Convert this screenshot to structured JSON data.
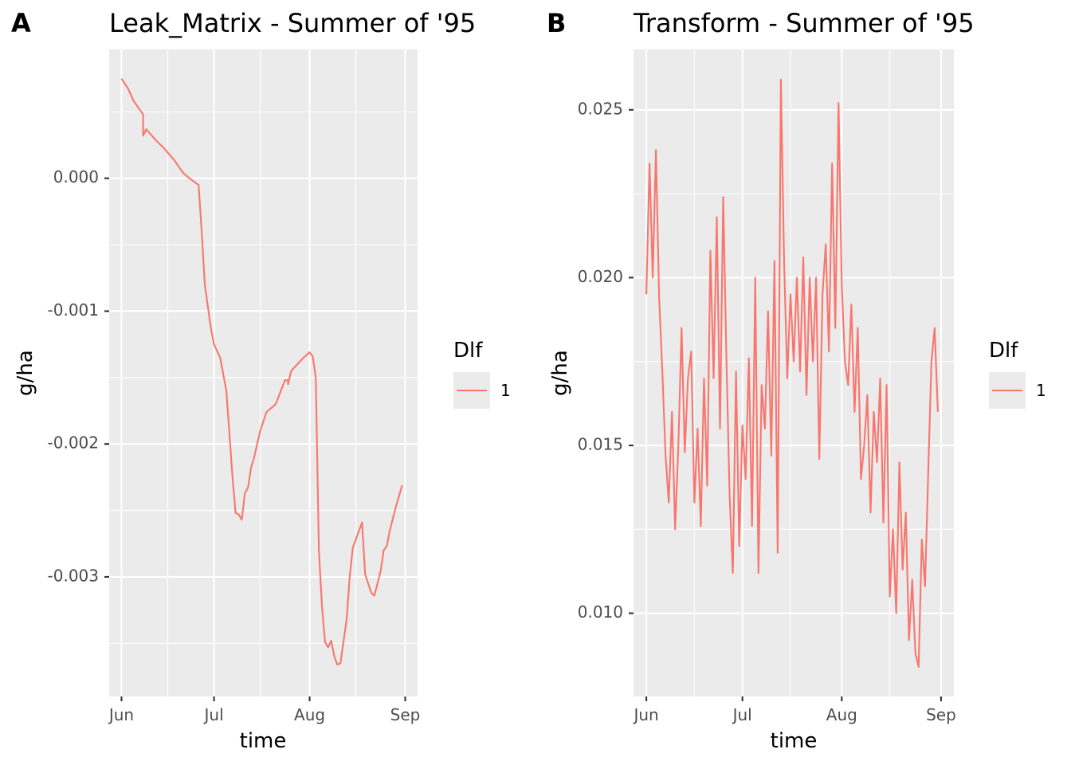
{
  "chart_data": [
    {
      "type": "line",
      "panel_label": "A",
      "title": "Leak_Matrix - Summer of '95",
      "xlabel": "time",
      "ylabel": "g/ha",
      "x_ticks": [
        "Jun",
        "Jul",
        "Aug",
        "Sep"
      ],
      "x_tick_dates": [
        "1995-06-01",
        "1995-07-01",
        "1995-08-01",
        "1995-09-01"
      ],
      "x_minor_dates": [
        "1995-06-16",
        "1995-07-16",
        "1995-08-16"
      ],
      "xlim": [
        "1995-05-28",
        "1995-09-05"
      ],
      "y_ticks": [
        0.0,
        -0.001,
        -0.002,
        -0.003
      ],
      "y_tick_labels": [
        "0.000",
        "-0.001",
        "-0.002",
        "-0.003"
      ],
      "ylim": [
        -0.0039,
        0.00097
      ],
      "grid": true,
      "legend": {
        "title": "Dlf",
        "position": "right",
        "entries": [
          "1"
        ]
      },
      "series": [
        {
          "name": "1",
          "color": "#F8766D",
          "x": [
            "1995-06-01",
            "1995-06-03",
            "1995-06-05",
            "1995-06-08",
            "1995-06-08",
            "1995-06-09",
            "1995-06-12",
            "1995-06-15",
            "1995-06-18",
            "1995-06-21",
            "1995-06-23",
            "1995-06-26",
            "1995-06-27",
            "1995-06-28",
            "1995-06-30",
            "1995-07-01",
            "1995-07-03",
            "1995-07-05",
            "1995-07-07",
            "1995-07-08",
            "1995-07-09",
            "1995-07-10",
            "1995-07-11",
            "1995-07-12",
            "1995-07-13",
            "1995-07-14",
            "1995-07-15",
            "1995-07-16",
            "1995-07-18",
            "1995-07-21",
            "1995-07-23",
            "1995-07-24",
            "1995-07-25",
            "1995-07-25",
            "1995-07-26",
            "1995-07-30",
            "1995-08-01",
            "1995-08-02",
            "1995-08-03",
            "1995-08-04",
            "1995-08-05",
            "1995-08-06",
            "1995-08-07",
            "1995-08-08",
            "1995-08-09",
            "1995-08-10",
            "1995-08-11",
            "1995-08-13",
            "1995-08-14",
            "1995-08-15",
            "1995-08-18",
            "1995-08-19",
            "1995-08-21",
            "1995-08-22",
            "1995-08-24",
            "1995-08-25",
            "1995-08-26",
            "1995-08-27",
            "1995-08-29",
            "1995-08-31"
          ],
          "y": [
            0.00075,
            0.00068,
            0.00058,
            0.00048,
            0.00032,
            0.00037,
            0.00029,
            0.00022,
            0.00014,
            4e-05,
            0.0,
            -5e-05,
            -0.0004,
            -0.0008,
            -0.00113,
            -0.00125,
            -0.00135,
            -0.0016,
            -0.00225,
            -0.00252,
            -0.00253,
            -0.00257,
            -0.00237,
            -0.00233,
            -0.00218,
            -0.0021,
            -0.002,
            -0.0019,
            -0.00176,
            -0.0017,
            -0.00158,
            -0.00152,
            -0.00152,
            -0.00155,
            -0.00145,
            -0.00135,
            -0.00131,
            -0.00134,
            -0.0015,
            -0.0028,
            -0.00322,
            -0.00349,
            -0.00353,
            -0.00348,
            -0.0036,
            -0.00366,
            -0.00365,
            -0.00332,
            -0.003,
            -0.00278,
            -0.00259,
            -0.00298,
            -0.00312,
            -0.00314,
            -0.00296,
            -0.0028,
            -0.00277,
            -0.00265,
            -0.00247,
            -0.00231
          ]
        }
      ]
    },
    {
      "type": "line",
      "panel_label": "B",
      "title": "Transform - Summer of '95",
      "xlabel": "time",
      "ylabel": "g/ha",
      "x_ticks": [
        "Jun",
        "Jul",
        "Aug",
        "Sep"
      ],
      "x_tick_dates": [
        "1995-06-01",
        "1995-07-01",
        "1995-08-01",
        "1995-09-01"
      ],
      "x_minor_dates": [
        "1995-06-16",
        "1995-07-16",
        "1995-08-16"
      ],
      "xlim": [
        "1995-05-28",
        "1995-09-05"
      ],
      "y_ticks": [
        0.01,
        0.015,
        0.02,
        0.025
      ],
      "y_tick_labels": [
        "0.010",
        "0.015",
        "0.020",
        "0.025"
      ],
      "ylim": [
        0.00752,
        0.0268
      ],
      "grid": true,
      "legend": {
        "title": "Dlf",
        "position": "right",
        "entries": [
          "1"
        ]
      },
      "series": [
        {
          "name": "1",
          "color": "#F8766D",
          "x": [
            "1995-06-01",
            "1995-06-02",
            "1995-06-03",
            "1995-06-04",
            "1995-06-05",
            "1995-06-06",
            "1995-06-07",
            "1995-06-08",
            "1995-06-09",
            "1995-06-10",
            "1995-06-11",
            "1995-06-12",
            "1995-06-13",
            "1995-06-14",
            "1995-06-15",
            "1995-06-16",
            "1995-06-17",
            "1995-06-18",
            "1995-06-19",
            "1995-06-20",
            "1995-06-21",
            "1995-06-22",
            "1995-06-23",
            "1995-06-24",
            "1995-06-25",
            "1995-06-26",
            "1995-06-27",
            "1995-06-28",
            "1995-06-29",
            "1995-06-30",
            "1995-07-01",
            "1995-07-02",
            "1995-07-03",
            "1995-07-04",
            "1995-07-05",
            "1995-07-06",
            "1995-07-07",
            "1995-07-08",
            "1995-07-09",
            "1995-07-10",
            "1995-07-11",
            "1995-07-12",
            "1995-07-13",
            "1995-07-14",
            "1995-07-15",
            "1995-07-16",
            "1995-07-17",
            "1995-07-18",
            "1995-07-19",
            "1995-07-20",
            "1995-07-21",
            "1995-07-22",
            "1995-07-23",
            "1995-07-24",
            "1995-07-25",
            "1995-07-26",
            "1995-07-27",
            "1995-07-28",
            "1995-07-29",
            "1995-07-30",
            "1995-07-31",
            "1995-08-01",
            "1995-08-02",
            "1995-08-03",
            "1995-08-04",
            "1995-08-05",
            "1995-08-06",
            "1995-08-07",
            "1995-08-08",
            "1995-08-09",
            "1995-08-10",
            "1995-08-11",
            "1995-08-12",
            "1995-08-13",
            "1995-08-14",
            "1995-08-15",
            "1995-08-16",
            "1995-08-17",
            "1995-08-18",
            "1995-08-19",
            "1995-08-20",
            "1995-08-21",
            "1995-08-22",
            "1995-08-23",
            "1995-08-24",
            "1995-08-25",
            "1995-08-26",
            "1995-08-27",
            "1995-08-28",
            "1995-08-29",
            "1995-08-30",
            "1995-08-31"
          ],
          "y": [
            0.0195,
            0.0234,
            0.02,
            0.0238,
            0.0194,
            0.0172,
            0.0147,
            0.0133,
            0.016,
            0.0125,
            0.015,
            0.0185,
            0.0148,
            0.017,
            0.0178,
            0.0133,
            0.0155,
            0.0126,
            0.017,
            0.0138,
            0.0208,
            0.017,
            0.0218,
            0.0155,
            0.0224,
            0.0176,
            0.0135,
            0.0112,
            0.0172,
            0.012,
            0.0156,
            0.014,
            0.0176,
            0.0126,
            0.02,
            0.0112,
            0.0168,
            0.0155,
            0.019,
            0.0147,
            0.0205,
            0.0118,
            0.0259,
            0.0205,
            0.017,
            0.0195,
            0.0175,
            0.02,
            0.0172,
            0.0206,
            0.0165,
            0.02,
            0.0175,
            0.02,
            0.0146,
            0.0195,
            0.021,
            0.0178,
            0.0234,
            0.0185,
            0.0252,
            0.0198,
            0.0175,
            0.0168,
            0.0192,
            0.016,
            0.0185,
            0.014,
            0.015,
            0.0165,
            0.013,
            0.016,
            0.0145,
            0.017,
            0.0127,
            0.0168,
            0.0105,
            0.0125,
            0.01,
            0.0145,
            0.0113,
            0.013,
            0.0092,
            0.011,
            0.0088,
            0.0084,
            0.0122,
            0.0108,
            0.0142,
            0.0175,
            0.0185,
            0.016
          ]
        }
      ]
    }
  ]
}
